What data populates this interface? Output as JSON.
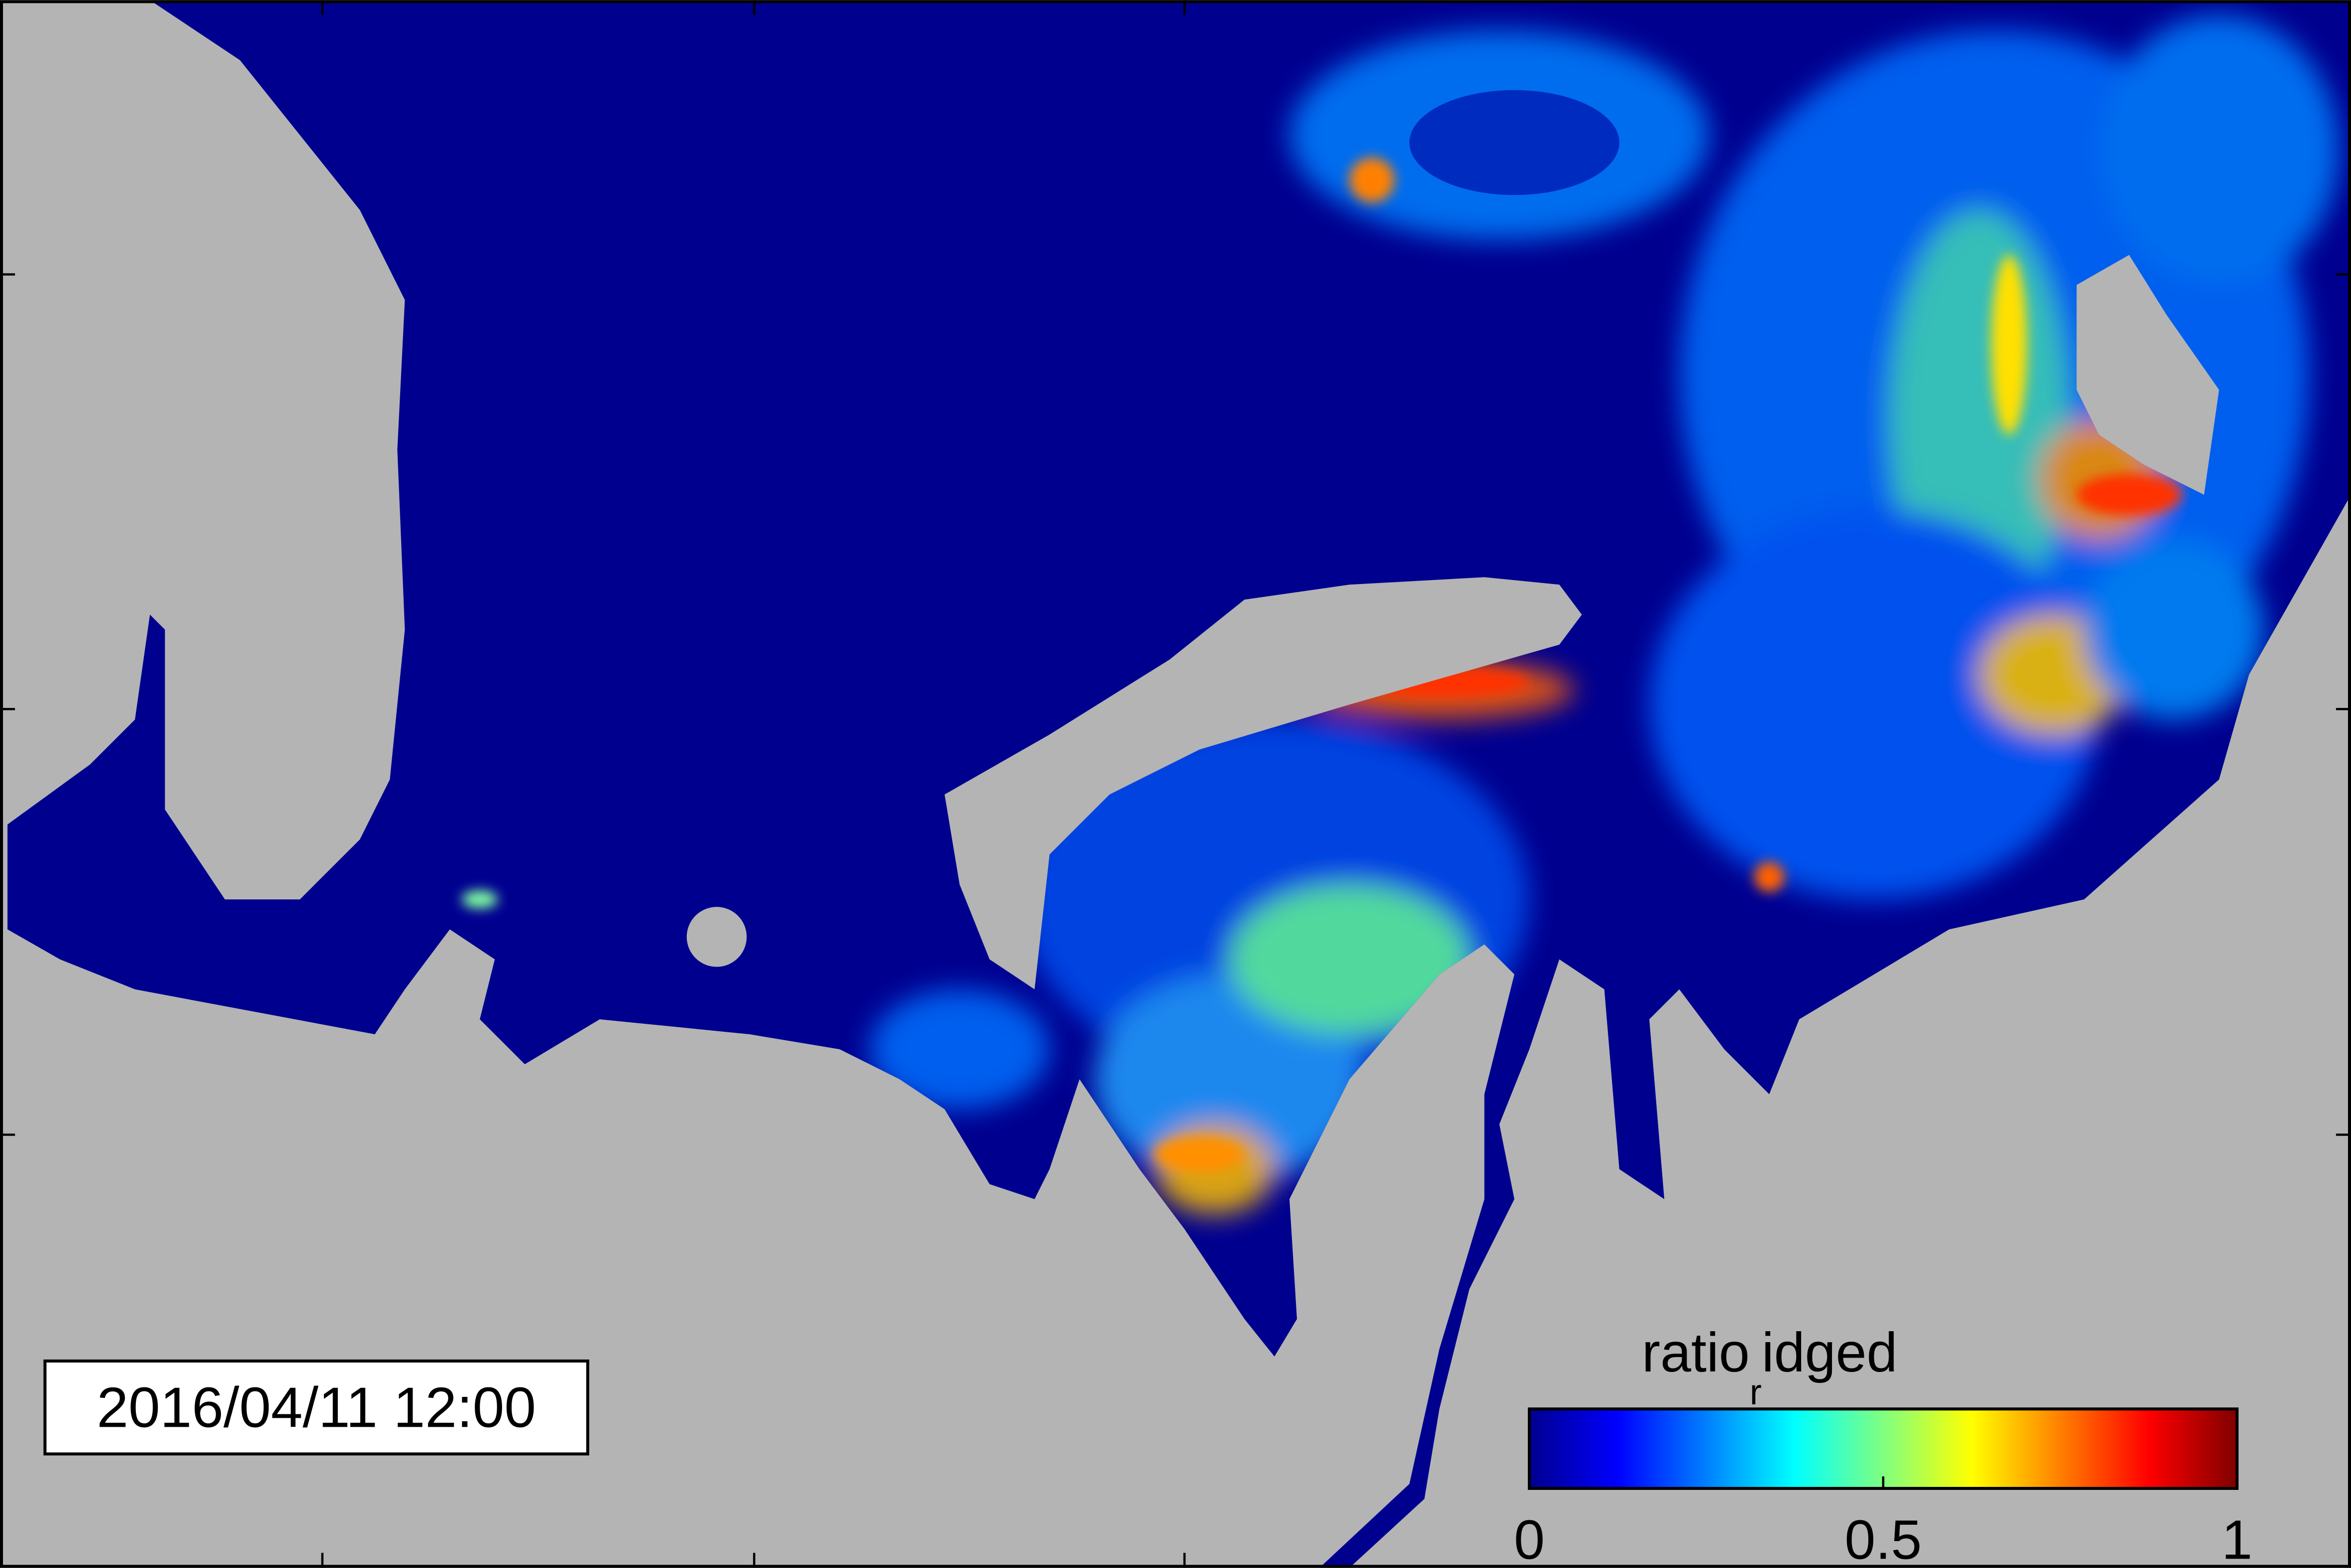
{
  "timestamp": "2016/04/11 12:00",
  "colorbar": {
    "label": {
      "text": "ratio",
      "subscript": "r",
      "suffix": "idged"
    },
    "range": [
      0,
      1
    ],
    "ticks": [
      0,
      0.5,
      1
    ],
    "colormap": "jet"
  }
}
